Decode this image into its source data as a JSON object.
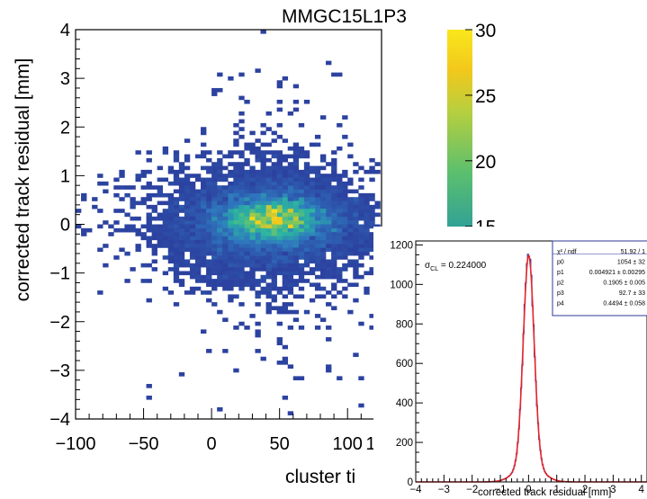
{
  "main_plot": {
    "title": "MMGC15L1P3",
    "xlabel": "cluster ti",
    "ylabel": "corrected track residual [mm]",
    "x_ticks": [
      "−100",
      "−50",
      "0",
      "50",
      "100",
      "1"
    ],
    "y_ticks": [
      "−4",
      "−3",
      "−2",
      "−1",
      "0",
      "1",
      "2",
      "3",
      "4"
    ],
    "z_ticks": [
      "15",
      "20",
      "25",
      "30"
    ]
  },
  "inset_plot": {
    "xlabel": "corrected track residual [mm]",
    "x_ticks": [
      "−4",
      "−3",
      "−2",
      "−1",
      "0",
      "1",
      "2",
      "3",
      "4"
    ],
    "y_ticks": [
      "0",
      "200",
      "400",
      "600",
      "800",
      "1000",
      "1200"
    ],
    "sigma_label": "σ",
    "sigma_sub": "CL",
    "sigma_value": " = 0.224000",
    "stats": [
      {
        "name": "χ² / ndf",
        "value": "51.92 / 1"
      },
      {
        "name": "p0",
        "value": "1054 ± 32"
      },
      {
        "name": "p1",
        "value": "0.004921 ± 0.00295"
      },
      {
        "name": "p2",
        "value": "0.1905 ± 0.005"
      },
      {
        "name": "p3",
        "value": "92.7 ± 33"
      },
      {
        "name": "p4",
        "value": "0.4494 ± 0.058"
      }
    ]
  },
  "colors": {
    "low": "#2c3e9e",
    "mid": "#2bb5a0",
    "high": "#f7e11a",
    "fit": "#e5262b",
    "hist": "#2233aa",
    "stats_border": "#2d3a9a"
  },
  "chart_data": [
    {
      "type": "heatmap",
      "title": "MMGC15L1P3",
      "xlabel": "cluster ti",
      "ylabel": "corrected track residual [mm]",
      "xlim": [
        -100,
        125
      ],
      "ylim": [
        -4,
        4
      ],
      "zlim": [
        14,
        30
      ],
      "blobs": [
        {
          "x": 45,
          "y": 0.1,
          "sx": 22,
          "sy": 0.28,
          "peak": 30
        },
        {
          "x": 40,
          "y": 0.0,
          "sx": 40,
          "sy": 0.6,
          "peak": 18
        }
      ]
    },
    {
      "type": "histogram",
      "xlabel": "corrected track residual [mm]",
      "xlim": [
        -4,
        4.2
      ],
      "ylim": [
        0,
        1220
      ],
      "fit": {
        "p0": 1054,
        "p1": 0.004921,
        "p2": 0.1905,
        "p3": 92.7,
        "p4": 0.4494
      },
      "peak_value": 1150,
      "sigma_CL": 0.224
    }
  ]
}
